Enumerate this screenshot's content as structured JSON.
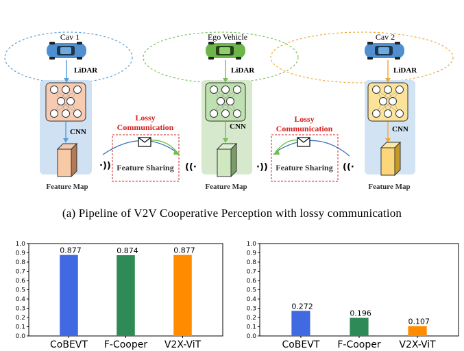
{
  "pipeline": {
    "vehicles": [
      {
        "name": "Cav 1",
        "sensor": "LiDAR",
        "encoder": "CNN",
        "output": "Feature Map",
        "color": "#5aa0d8"
      },
      {
        "name": "Ego Vehicle",
        "sensor": "LiDAR",
        "encoder": "CNN",
        "output": "Feature Map",
        "color": "#7cbf5a"
      },
      {
        "name": "Cav 2",
        "sensor": "LiDAR",
        "encoder": "CNN",
        "output": "Feature Map",
        "color": "#f2a93b"
      }
    ],
    "links": [
      {
        "title_line1": "Lossy",
        "title_line2": "Communication",
        "label": "Feature Sharing"
      },
      {
        "title_line1": "Lossy",
        "title_line2": "Communication",
        "label": "Feature Sharing"
      }
    ],
    "lossy_color": "#d42020"
  },
  "caption": "(a) Pipeline of V2V Cooperative Perception with lossy communication",
  "chart_data": [
    {
      "type": "bar",
      "categories": [
        "CoBEVT",
        "F-Cooper",
        "V2X-ViT"
      ],
      "values": [
        0.877,
        0.874,
        0.877
      ],
      "value_labels": [
        "0.877",
        "0.874",
        "0.877"
      ],
      "ylim": [
        0,
        1.0
      ],
      "yticks": [
        "0.0",
        "0.1",
        "0.2",
        "0.3",
        "0.4",
        "0.5",
        "0.6",
        "0.7",
        "0.8",
        "0.9",
        "1.0"
      ],
      "colors": [
        "#4169e1",
        "#2e8b57",
        "#ff8c00"
      ]
    },
    {
      "type": "bar",
      "categories": [
        "CoBEVT",
        "F-Cooper",
        "V2X-ViT"
      ],
      "values": [
        0.272,
        0.196,
        0.107
      ],
      "value_labels": [
        "0.272",
        "0.196",
        "0.107"
      ],
      "ylim": [
        0,
        1.0
      ],
      "yticks": [
        "0.0",
        "0.1",
        "0.2",
        "0.3",
        "0.4",
        "0.5",
        "0.6",
        "0.7",
        "0.8",
        "0.9",
        "1.0"
      ],
      "colors": [
        "#4169e1",
        "#2e8b57",
        "#ff8c00"
      ]
    }
  ]
}
